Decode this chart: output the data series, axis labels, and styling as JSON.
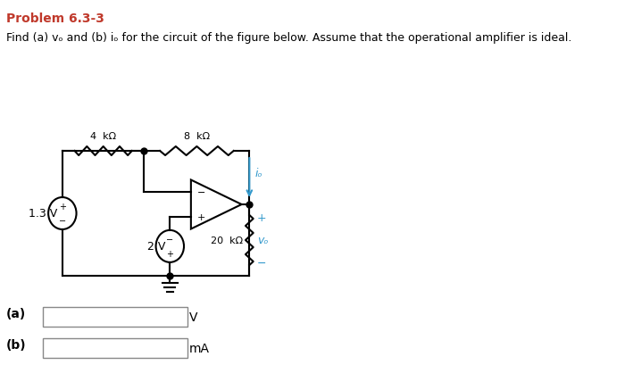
{
  "title": "Problem 6.3-3",
  "subtitle_bold": [
    "(a)",
    "(b)"
  ],
  "subtitle_text": "Find (a) vₒ and (b) iₒ for the circuit of the figure below. Assume that the operational amplifier is ideal.",
  "title_color": "#c0392b",
  "bg_color": "#ffffff",
  "label_a": "(a)",
  "label_b": "(b)",
  "unit_a": "V",
  "unit_b": "mA",
  "R1_label": "4  kΩ",
  "R2_label": "8  kΩ",
  "R3_label": "20  kΩ",
  "Vs1_label": "1.3 V",
  "Vs2_label": "2 V",
  "io_label": "iₒ",
  "vo_label": "vₒ",
  "cyan": "#3399cc"
}
